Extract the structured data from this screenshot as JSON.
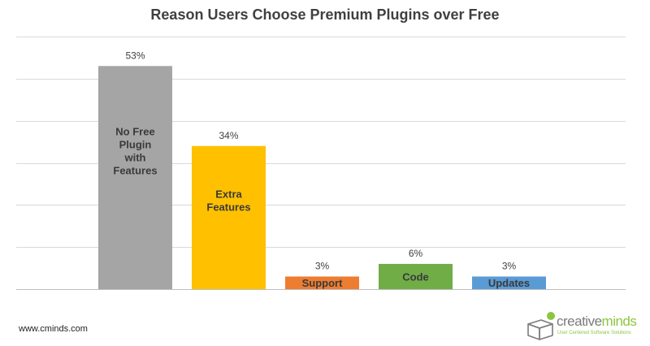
{
  "chart_data": {
    "type": "bar",
    "title": "Reason Users Choose Premium Plugins over Free",
    "categories": [
      "No Free Plugin with Features",
      "Extra Features",
      "Support",
      "Code",
      "Updates"
    ],
    "category_lines": [
      [
        "No Free",
        "Plugin",
        "with",
        "Features"
      ],
      [
        "Extra",
        "Features"
      ],
      [
        "Support"
      ],
      [
        "Code"
      ],
      [
        "Updates"
      ]
    ],
    "values": [
      53,
      34,
      3,
      6,
      3
    ],
    "value_labels": [
      "53%",
      "34%",
      "3%",
      "6%",
      "3%"
    ],
    "colors": [
      "#a5a5a5",
      "#ffc000",
      "#ed7d31",
      "#70ad47",
      "#5b9bd5"
    ],
    "xlabel": "",
    "ylabel": "",
    "ylim": [
      0,
      60
    ],
    "grid": true,
    "legend": "none"
  },
  "footer": {
    "source_url": "www.cminds.com"
  },
  "brand": {
    "name_part1": "creative",
    "name_part2": "minds",
    "tagline": "User Centered Software Solutions",
    "colors": {
      "gray": "#7b7b7b",
      "green": "#8cc63f"
    }
  }
}
